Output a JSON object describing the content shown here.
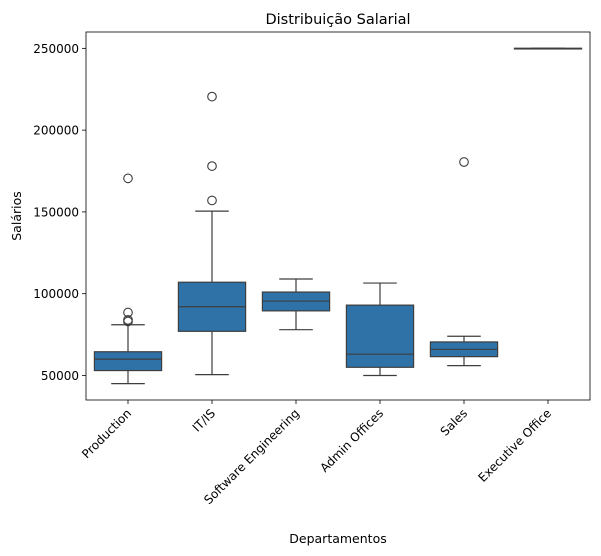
{
  "chart_data": {
    "type": "boxplot",
    "title": "Distribuição Salarial",
    "xlabel": "Departamentos",
    "ylabel": "Salários",
    "ylim": [
      35000,
      260000
    ],
    "yticks": [
      50000,
      100000,
      150000,
      200000,
      250000
    ],
    "box_color": "#2f72a8",
    "line_color": "#3d3d3d",
    "categories": [
      "Production",
      "IT/IS",
      "Software Engineering",
      "Admin Offices",
      "Sales",
      "Executive Office"
    ],
    "boxes": [
      {
        "category": "Production",
        "whisker_low": 45000,
        "q1": 53000,
        "median": 60000,
        "q3": 64500,
        "whisker_high": 81000,
        "outliers": [
          83000,
          84000,
          88500,
          170500
        ]
      },
      {
        "category": "IT/IS",
        "whisker_low": 50500,
        "q1": 77000,
        "median": 92000,
        "q3": 107000,
        "whisker_high": 150500,
        "outliers": [
          157000,
          178000,
          220500
        ]
      },
      {
        "category": "Software Engineering",
        "whisker_low": 78000,
        "q1": 89500,
        "median": 95500,
        "q3": 101000,
        "whisker_high": 109000,
        "outliers": []
      },
      {
        "category": "Admin Offices",
        "whisker_low": 50000,
        "q1": 55000,
        "median": 63000,
        "q3": 93000,
        "whisker_high": 106500,
        "outliers": []
      },
      {
        "category": "Sales",
        "whisker_low": 56000,
        "q1": 61500,
        "median": 66000,
        "q3": 70500,
        "whisker_high": 74000,
        "outliers": [
          180500
        ]
      },
      {
        "category": "Executive Office",
        "whisker_low": 250000,
        "q1": 250000,
        "median": 250000,
        "q3": 250000,
        "whisker_high": 250000,
        "outliers": []
      }
    ]
  }
}
